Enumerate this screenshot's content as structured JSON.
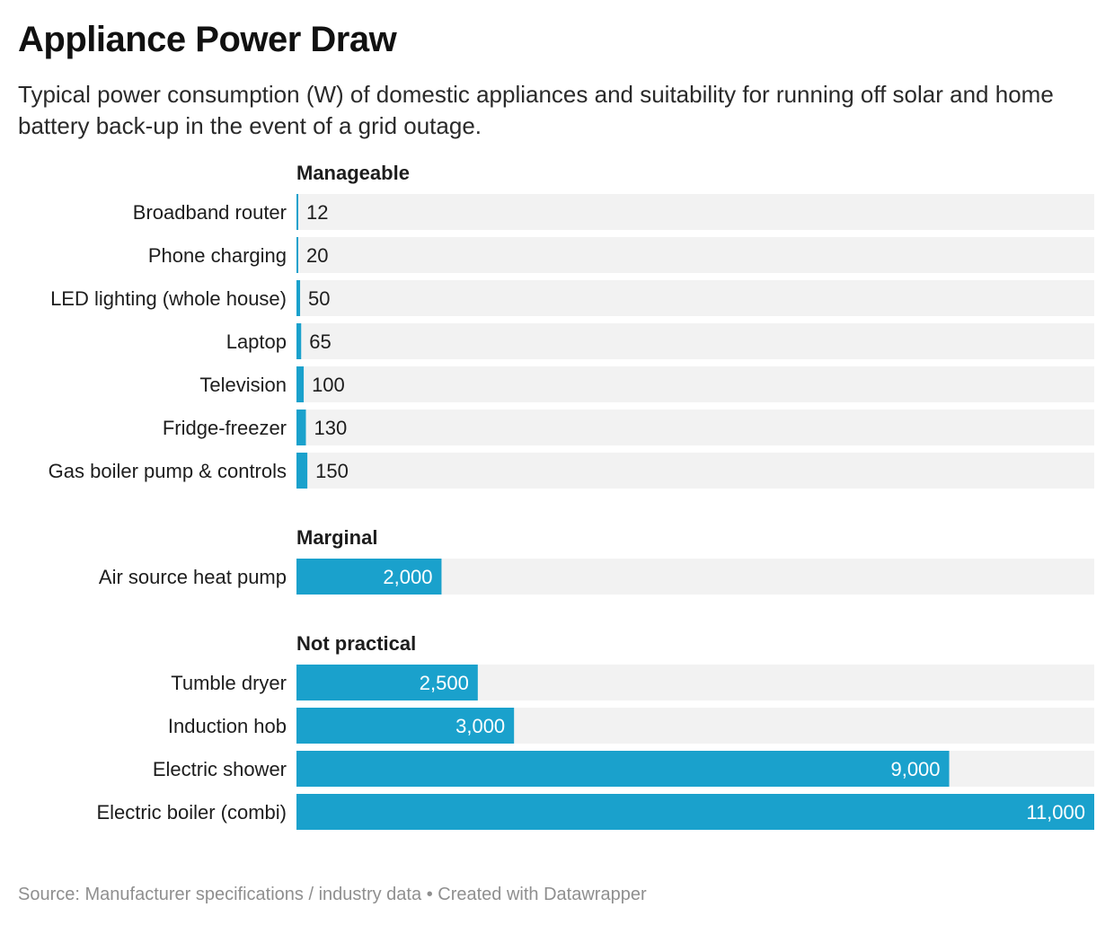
{
  "header": {
    "title": "Appliance Power Draw",
    "subtitle": "Typical power consumption (W) of domestic appliances and suitability for running off solar and home battery back-up in the event of a grid outage."
  },
  "footer": {
    "source": "Source: Manufacturer specifications / industry data",
    "separator": "•",
    "credit": "Created with Datawrapper"
  },
  "chart_data": {
    "type": "bar",
    "orientation": "horizontal",
    "unit": "W",
    "xlim": [
      0,
      11000
    ],
    "grid": false,
    "bar_color": "#1aa1cc",
    "track_color": "#f2f2f2",
    "groups": [
      {
        "name": "Manageable",
        "categories": [
          "Broadband router",
          "Phone charging",
          "LED lighting (whole house)",
          "Laptop",
          "Television",
          "Fridge-freezer",
          "Gas boiler pump & controls"
        ],
        "values": [
          12,
          20,
          50,
          65,
          100,
          130,
          150
        ],
        "labels": [
          "12",
          "20",
          "50",
          "65",
          "100",
          "130",
          "150"
        ]
      },
      {
        "name": "Marginal",
        "categories": [
          "Air source heat pump"
        ],
        "values": [
          2000
        ],
        "labels": [
          "2,000"
        ]
      },
      {
        "name": "Not practical",
        "categories": [
          "Tumble dryer",
          "Induction hob",
          "Electric shower",
          "Electric boiler (combi)"
        ],
        "values": [
          2500,
          3000,
          9000,
          11000
        ],
        "labels": [
          "2,500",
          "3,000",
          "9,000",
          "11,000"
        ]
      }
    ]
  }
}
